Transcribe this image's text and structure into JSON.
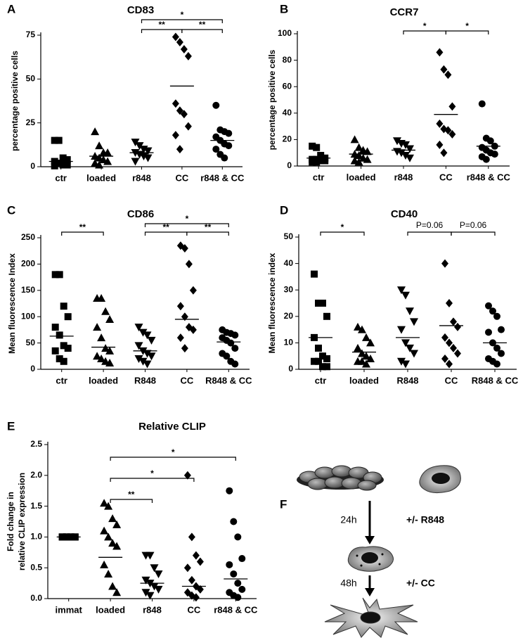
{
  "chart_data": [
    {
      "type": "dotplot",
      "panel": "A",
      "title": "CD83",
      "ylabel": [
        "percentage positive cells"
      ],
      "categories": [
        "ctr",
        "loaded",
        "r848",
        "CC",
        "r848 & CC"
      ],
      "markers": [
        "square",
        "triangle",
        "triangle-down",
        "diamond",
        "circle"
      ],
      "color": "#000000",
      "values": [
        [
          15,
          15,
          5,
          4,
          3,
          2,
          1,
          1,
          0.5
        ],
        [
          20,
          12,
          8,
          8,
          6,
          5,
          4,
          3,
          2,
          1
        ],
        [
          14,
          12,
          10,
          9,
          8,
          7,
          6,
          5,
          3
        ],
        [
          74,
          71,
          67,
          63,
          36,
          32,
          30,
          23,
          18,
          10
        ],
        [
          35,
          21,
          20,
          19,
          17,
          15,
          13,
          12,
          10,
          7,
          5
        ]
      ],
      "means": [
        3,
        6,
        8,
        46,
        15
      ],
      "ylim": [
        0,
        75
      ],
      "yticks": [
        0,
        25,
        50,
        75
      ],
      "brackets": [
        {
          "groups": [
            2,
            3
          ],
          "label": "**"
        },
        {
          "groups": [
            3,
            4
          ],
          "label": "**"
        },
        {
          "groups": [
            2,
            4
          ],
          "label": "*"
        }
      ]
    },
    {
      "type": "dotplot",
      "panel": "B",
      "title": "CCR7",
      "ylabel": [
        "percentage positive cells"
      ],
      "categories": [
        "ctr",
        "loaded",
        "r848",
        "CC",
        "r848 & CC"
      ],
      "markers": [
        "square",
        "triangle",
        "triangle-down",
        "diamond",
        "circle"
      ],
      "color": "#000000",
      "values": [
        [
          15,
          14,
          8,
          6,
          5,
          5,
          4,
          4,
          3,
          3
        ],
        [
          20,
          14,
          12,
          11,
          9,
          8,
          6,
          5,
          4,
          3
        ],
        [
          19,
          17,
          16,
          13,
          11,
          10,
          8,
          6
        ],
        [
          86,
          73,
          69,
          45,
          32,
          28,
          27,
          24,
          16,
          10
        ],
        [
          47,
          21,
          19,
          15,
          14,
          12,
          10,
          9,
          7,
          5
        ]
      ],
      "means": [
        6,
        9,
        12,
        39,
        15
      ],
      "ylim": [
        0,
        100
      ],
      "yticks": [
        0,
        20,
        40,
        60,
        80,
        100
      ],
      "brackets": [
        {
          "groups": [
            2,
            3
          ],
          "label": "*"
        },
        {
          "groups": [
            3,
            4
          ],
          "label": "*"
        }
      ]
    },
    {
      "type": "dotplot",
      "panel": "C",
      "title": "CD86",
      "ylabel": [
        "Mean fluorescence Index"
      ],
      "categories": [
        "ctr",
        "loaded",
        "R848",
        "CC",
        "R848 & CC"
      ],
      "markers": [
        "square",
        "triangle",
        "triangle-down",
        "diamond",
        "circle"
      ],
      "color": "#000000",
      "values": [
        [
          180,
          180,
          120,
          100,
          80,
          65,
          45,
          40,
          35,
          20,
          15
        ],
        [
          135,
          135,
          110,
          95,
          80,
          60,
          40,
          35,
          25,
          20,
          15,
          12
        ],
        [
          80,
          70,
          65,
          55,
          45,
          35,
          30,
          25,
          20,
          15,
          10
        ],
        [
          235,
          230,
          200,
          150,
          120,
          100,
          80,
          75,
          60,
          40
        ],
        [
          75,
          70,
          68,
          65,
          60,
          55,
          50,
          40,
          30,
          25,
          15,
          10
        ]
      ],
      "means": [
        63,
        42,
        35,
        95,
        52
      ],
      "ylim": [
        0,
        250
      ],
      "yticks": [
        0,
        50,
        100,
        150,
        200,
        250
      ],
      "brackets": [
        {
          "groups": [
            0,
            1
          ],
          "label": "**"
        },
        {
          "groups": [
            2,
            3
          ],
          "label": "**"
        },
        {
          "groups": [
            3,
            4
          ],
          "label": "**"
        },
        {
          "groups": [
            2,
            4
          ],
          "label": "*"
        }
      ]
    },
    {
      "type": "dotplot",
      "panel": "D",
      "title": "CD40",
      "ylabel": [
        "Mean fluorescence index"
      ],
      "categories": [
        "ctr",
        "loaded",
        "R848",
        "CC",
        "R848 & CC"
      ],
      "markers": [
        "square",
        "triangle",
        "triangle-down",
        "diamond",
        "circle"
      ],
      "color": "#000000",
      "values": [
        [
          36,
          25,
          25,
          20,
          12,
          8,
          5,
          4,
          3,
          3,
          1,
          1
        ],
        [
          16,
          15,
          12,
          10,
          8,
          6,
          5,
          4,
          3,
          3,
          2
        ],
        [
          30,
          28,
          22,
          18,
          15,
          10,
          8,
          6,
          3,
          2
        ],
        [
          40,
          25,
          18,
          16,
          12,
          10,
          8,
          6,
          4,
          2
        ],
        [
          24,
          22,
          20,
          15,
          14,
          10,
          8,
          6,
          4,
          3,
          2
        ]
      ],
      "means": [
        12,
        6.5,
        12,
        16.5,
        10
      ],
      "ylim": [
        0,
        50
      ],
      "yticks": [
        0,
        10,
        20,
        30,
        40,
        50
      ],
      "brackets": [
        {
          "groups": [
            0,
            1
          ],
          "label": "*"
        },
        {
          "groups": [
            2,
            3
          ],
          "label": "P=0.06"
        },
        {
          "groups": [
            3,
            4
          ],
          "label": "P=0.06"
        }
      ]
    },
    {
      "type": "dotplot",
      "panel": "E",
      "title": "Relative CLIP",
      "ylabel": [
        "Fold change in",
        "relative CLIP expression"
      ],
      "categories": [
        "immat",
        "loaded",
        "r848",
        "CC",
        "r848 & CC"
      ],
      "markers": [
        "square",
        "triangle",
        "triangle-down",
        "diamond",
        "circle"
      ],
      "color": "#000000",
      "values": [
        [
          1,
          1,
          1,
          1,
          1,
          1,
          1,
          1,
          1,
          1,
          1,
          1
        ],
        [
          1.55,
          1.5,
          1.3,
          1.2,
          1.1,
          1.0,
          0.9,
          0.85,
          0.55,
          0.4,
          0.2,
          0.1
        ],
        [
          0.7,
          0.7,
          0.5,
          0.4,
          0.3,
          0.25,
          0.2,
          0.15,
          0.1,
          0.05
        ],
        [
          2.0,
          1.0,
          0.7,
          0.6,
          0.5,
          0.3,
          0.2,
          0.15,
          0.1,
          0.05,
          0.02
        ],
        [
          1.75,
          1.25,
          1.0,
          0.65,
          0.55,
          0.4,
          0.25,
          0.15,
          0.1,
          0.05,
          0.02
        ]
      ],
      "means": [
        1,
        0.67,
        0.25,
        0.2,
        0.32
      ],
      "ylim": [
        0,
        2.5
      ],
      "yticks": [
        {
          "value": 0,
          "label": "0.0"
        },
        0.5,
        {
          "value": 1,
          "label": "1.0"
        },
        1.5,
        {
          "value": 2,
          "label": "2.0"
        },
        2.5
      ],
      "brackets": [
        {
          "groups": [
            1,
            2
          ],
          "label": "**"
        },
        {
          "groups": [
            1,
            3
          ],
          "label": "*"
        },
        {
          "groups": [
            1,
            4
          ],
          "label": "*"
        }
      ]
    }
  ],
  "diagram": {
    "panel": "F",
    "steps": [
      {
        "time": "24h",
        "treatment": "+/- R848"
      },
      {
        "time": "48h",
        "treatment": "+/- CC"
      }
    ]
  }
}
